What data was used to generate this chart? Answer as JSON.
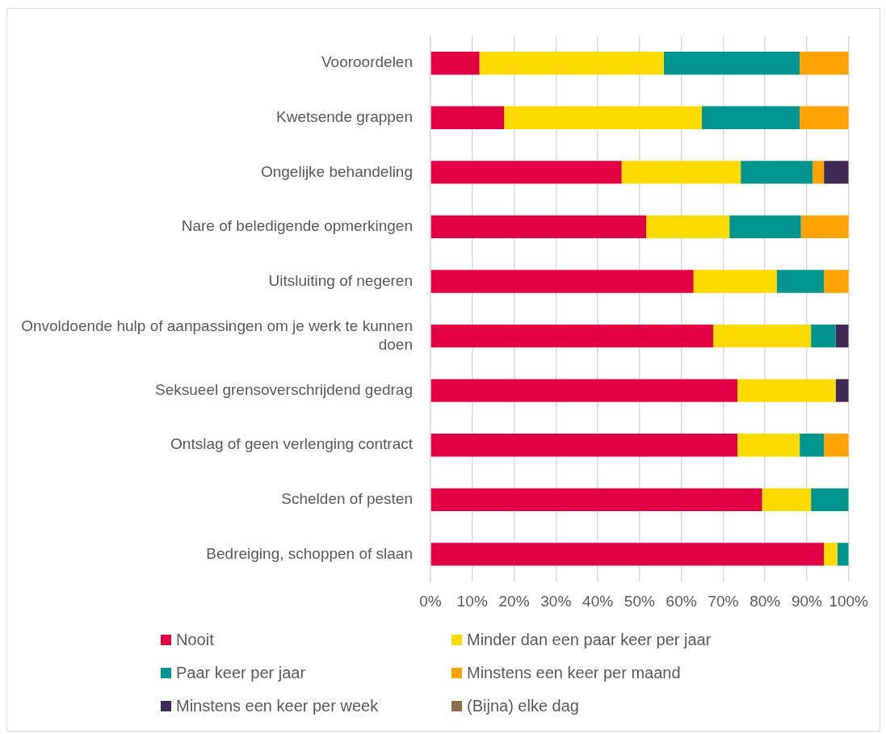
{
  "chart_data": {
    "type": "bar",
    "orientation": "horizontal",
    "stacked": true,
    "categories": [
      "Vooroordelen",
      "Kwetsende grappen",
      "Ongelijke behandeling",
      "Nare of beledigende opmerkingen",
      "Uitsluiting of negeren",
      "Onvoldoende hulp of aanpassingen om je werk te kunnen doen",
      "Seksueel grensoverschrijdend gedrag",
      "Ontslag of geen verlenging contract",
      "Schelden of pesten",
      "Bedreiging, schoppen of slaan"
    ],
    "series": [
      {
        "name": "Nooit",
        "color": "#e10043",
        "values": [
          11.7,
          17.6,
          45.7,
          51.6,
          62.9,
          67.6,
          73.4,
          73.4,
          79.3,
          94.1
        ]
      },
      {
        "name": "Minder dan een paar keer per jaar",
        "color": "#fddb00",
        "values": [
          44.1,
          47.3,
          28.5,
          19.9,
          19.9,
          23.4,
          23.5,
          14.9,
          11.7,
          3.2
        ]
      },
      {
        "name": "Paar keer per jaar",
        "color": "#00968f",
        "values": [
          32.5,
          23.4,
          17.2,
          17.1,
          11.3,
          5.9,
          0,
          5.8,
          9.0,
          2.7
        ]
      },
      {
        "name": "Minstens een keer per maand",
        "color": "#ffa300",
        "values": [
          11.7,
          11.7,
          2.7,
          11.4,
          5.9,
          0,
          0,
          5.9,
          0,
          0
        ]
      },
      {
        "name": "Minstens een keer per week",
        "color": "#3f2a56",
        "values": [
          0,
          0,
          5.9,
          0,
          0,
          3.1,
          3.1,
          0,
          0,
          0
        ]
      },
      {
        "name": "(Bijna) elke dag",
        "color": "#8c6d4f",
        "values": [
          0,
          0,
          0,
          0,
          0,
          0,
          0,
          0,
          0,
          0
        ]
      }
    ],
    "xlim": [
      0,
      100
    ],
    "xticks": [
      {
        "value": 0,
        "label": "0%"
      },
      {
        "value": 10,
        "label": "10%"
      },
      {
        "value": 20,
        "label": "20%"
      },
      {
        "value": 30,
        "label": "30%"
      },
      {
        "value": 40,
        "label": "40%"
      },
      {
        "value": 50,
        "label": "50%"
      },
      {
        "value": 60,
        "label": "60%"
      },
      {
        "value": 70,
        "label": "70%"
      },
      {
        "value": 80,
        "label": "80%"
      },
      {
        "value": 90,
        "label": "90%"
      },
      {
        "value": 100,
        "label": "100%"
      }
    ],
    "grid": "x",
    "legend": "bottom"
  }
}
